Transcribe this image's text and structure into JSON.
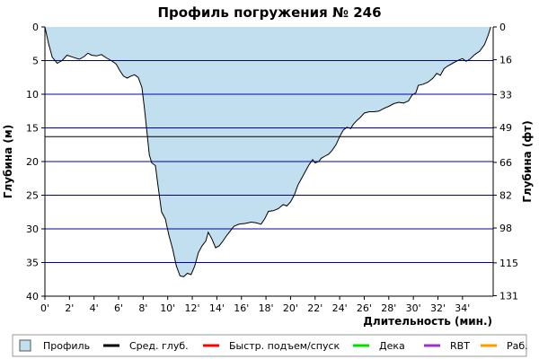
{
  "chart_data": {
    "type": "area",
    "title": "Профиль погружения № 246",
    "xlabel": "Длительность (мин.)",
    "ylabel_left": "Глубина (м)",
    "ylabel_right": "Глубина (фт)",
    "xlim": [
      0,
      36.5
    ],
    "ylim": [
      0,
      40
    ],
    "y_inverted": true,
    "grid": true,
    "x_ticks": [
      {
        "value": 0,
        "label": "0'"
      },
      {
        "value": 2,
        "label": "2'"
      },
      {
        "value": 4,
        "label": "4'"
      },
      {
        "value": 6,
        "label": "6'"
      },
      {
        "value": 8,
        "label": "8'"
      },
      {
        "value": 10,
        "label": "10'"
      },
      {
        "value": 12,
        "label": "12'"
      },
      {
        "value": 14,
        "label": "14'"
      },
      {
        "value": 16,
        "label": "16'"
      },
      {
        "value": 18,
        "label": "18'"
      },
      {
        "value": 20,
        "label": "20'"
      },
      {
        "value": 22,
        "label": "22'"
      },
      {
        "value": 24,
        "label": "24'"
      },
      {
        "value": 26,
        "label": "26'"
      },
      {
        "value": 28,
        "label": "28'"
      },
      {
        "value": 30,
        "label": "30'"
      },
      {
        "value": 32,
        "label": "32'"
      },
      {
        "value": 34,
        "label": "34'"
      }
    ],
    "y_ticks_left": [
      {
        "value": 0,
        "label": "0"
      },
      {
        "value": 5,
        "label": "5"
      },
      {
        "value": 10,
        "label": "10"
      },
      {
        "value": 15,
        "label": "15"
      },
      {
        "value": 20,
        "label": "20"
      },
      {
        "value": 25,
        "label": "25"
      },
      {
        "value": 30,
        "label": "30"
      },
      {
        "value": 35,
        "label": "35"
      },
      {
        "value": 40,
        "label": "40"
      }
    ],
    "y_ticks_right": [
      {
        "value": 0,
        "label": "0"
      },
      {
        "value": 4.88,
        "label": "16"
      },
      {
        "value": 10.06,
        "label": "33"
      },
      {
        "value": 14.94,
        "label": "49"
      },
      {
        "value": 20.12,
        "label": "66"
      },
      {
        "value": 24.99,
        "label": "82"
      },
      {
        "value": 29.87,
        "label": "98"
      },
      {
        "value": 35.05,
        "label": "115"
      },
      {
        "value": 39.93,
        "label": "131"
      }
    ],
    "avg_depth": 16.3,
    "colors": {
      "fill": "#c2dff0",
      "profile_line": "#000000",
      "grid": "#0000aa",
      "avg_line": "#000000",
      "ascent": "#ff0000",
      "deco": "#00dd00",
      "rbt": "#9933cc",
      "work": "#ff9900"
    },
    "profile": [
      [
        0,
        0
      ],
      [
        0.3,
        2.5
      ],
      [
        0.6,
        4.5
      ],
      [
        1.0,
        5.4
      ],
      [
        1.4,
        5.0
      ],
      [
        1.8,
        4.2
      ],
      [
        2.3,
        4.5
      ],
      [
        2.8,
        4.8
      ],
      [
        3.2,
        4.4
      ],
      [
        3.5,
        3.9
      ],
      [
        3.8,
        4.2
      ],
      [
        4.2,
        4.3
      ],
      [
        4.6,
        4.1
      ],
      [
        5.0,
        4.6
      ],
      [
        5.4,
        5.0
      ],
      [
        5.8,
        5.5
      ],
      [
        6.1,
        6.5
      ],
      [
        6.4,
        7.3
      ],
      [
        6.7,
        7.6
      ],
      [
        7.0,
        7.3
      ],
      [
        7.3,
        7.1
      ],
      [
        7.6,
        7.5
      ],
      [
        7.9,
        9.0
      ],
      [
        8.1,
        12.0
      ],
      [
        8.3,
        15.5
      ],
      [
        8.5,
        19.0
      ],
      [
        8.7,
        20.2
      ],
      [
        9.0,
        20.6
      ],
      [
        9.2,
        23.5
      ],
      [
        9.5,
        27.5
      ],
      [
        9.8,
        28.5
      ],
      [
        10.1,
        31.0
      ],
      [
        10.4,
        33.0
      ],
      [
        10.7,
        35.5
      ],
      [
        11.0,
        37.0
      ],
      [
        11.3,
        37.1
      ],
      [
        11.6,
        36.6
      ],
      [
        11.9,
        36.8
      ],
      [
        12.2,
        35.5
      ],
      [
        12.5,
        33.5
      ],
      [
        12.8,
        32.5
      ],
      [
        13.1,
        31.8
      ],
      [
        13.3,
        30.5
      ],
      [
        13.6,
        31.5
      ],
      [
        13.9,
        32.8
      ],
      [
        14.2,
        32.5
      ],
      [
        14.5,
        31.8
      ],
      [
        14.8,
        31.0
      ],
      [
        15.1,
        30.3
      ],
      [
        15.4,
        29.6
      ],
      [
        15.8,
        29.3
      ],
      [
        16.3,
        29.2
      ],
      [
        16.8,
        29.0
      ],
      [
        17.2,
        29.1
      ],
      [
        17.6,
        29.3
      ],
      [
        17.9,
        28.5
      ],
      [
        18.2,
        27.4
      ],
      [
        18.6,
        27.3
      ],
      [
        19.0,
        27.0
      ],
      [
        19.4,
        26.4
      ],
      [
        19.7,
        26.6
      ],
      [
        20.0,
        26.0
      ],
      [
        20.3,
        25.0
      ],
      [
        20.6,
        23.5
      ],
      [
        20.9,
        22.5
      ],
      [
        21.2,
        21.5
      ],
      [
        21.5,
        20.5
      ],
      [
        21.8,
        19.7
      ],
      [
        22.0,
        20.2
      ],
      [
        22.3,
        20.0
      ],
      [
        22.5,
        19.5
      ],
      [
        22.8,
        19.2
      ],
      [
        23.1,
        18.9
      ],
      [
        23.4,
        18.3
      ],
      [
        23.7,
        17.5
      ],
      [
        24.0,
        16.3
      ],
      [
        24.3,
        15.3
      ],
      [
        24.6,
        14.9
      ],
      [
        24.9,
        15.1
      ],
      [
        25.1,
        14.5
      ],
      [
        25.4,
        13.9
      ],
      [
        25.7,
        13.4
      ],
      [
        26.0,
        12.8
      ],
      [
        26.4,
        12.6
      ],
      [
        26.8,
        12.6
      ],
      [
        27.2,
        12.5
      ],
      [
        27.6,
        12.1
      ],
      [
        28.0,
        11.8
      ],
      [
        28.4,
        11.4
      ],
      [
        28.8,
        11.2
      ],
      [
        29.2,
        11.3
      ],
      [
        29.6,
        11.0
      ],
      [
        29.9,
        10.1
      ],
      [
        30.2,
        9.8
      ],
      [
        30.4,
        8.7
      ],
      [
        30.8,
        8.5
      ],
      [
        31.2,
        8.2
      ],
      [
        31.6,
        7.6
      ],
      [
        31.9,
        6.9
      ],
      [
        32.2,
        7.2
      ],
      [
        32.5,
        6.2
      ],
      [
        32.8,
        5.8
      ],
      [
        33.2,
        5.4
      ],
      [
        33.6,
        5.0
      ],
      [
        34.0,
        4.7
      ],
      [
        34.3,
        5.1
      ],
      [
        34.6,
        4.8
      ],
      [
        35.0,
        4.1
      ],
      [
        35.4,
        3.6
      ],
      [
        35.8,
        2.6
      ],
      [
        36.1,
        1.2
      ],
      [
        36.3,
        0
      ]
    ]
  },
  "legend": [
    {
      "key": "profile",
      "label": "Профиль",
      "kind": "box"
    },
    {
      "key": "avg",
      "label": "Сред. глуб.",
      "kind": "line"
    },
    {
      "key": "ascent",
      "label": "Быстр. подъем/спуск",
      "kind": "line"
    },
    {
      "key": "deco",
      "label": "Дека",
      "kind": "line"
    },
    {
      "key": "rbt",
      "label": "RBT",
      "kind": "line"
    },
    {
      "key": "work",
      "label": "Раб.",
      "kind": "line"
    }
  ]
}
